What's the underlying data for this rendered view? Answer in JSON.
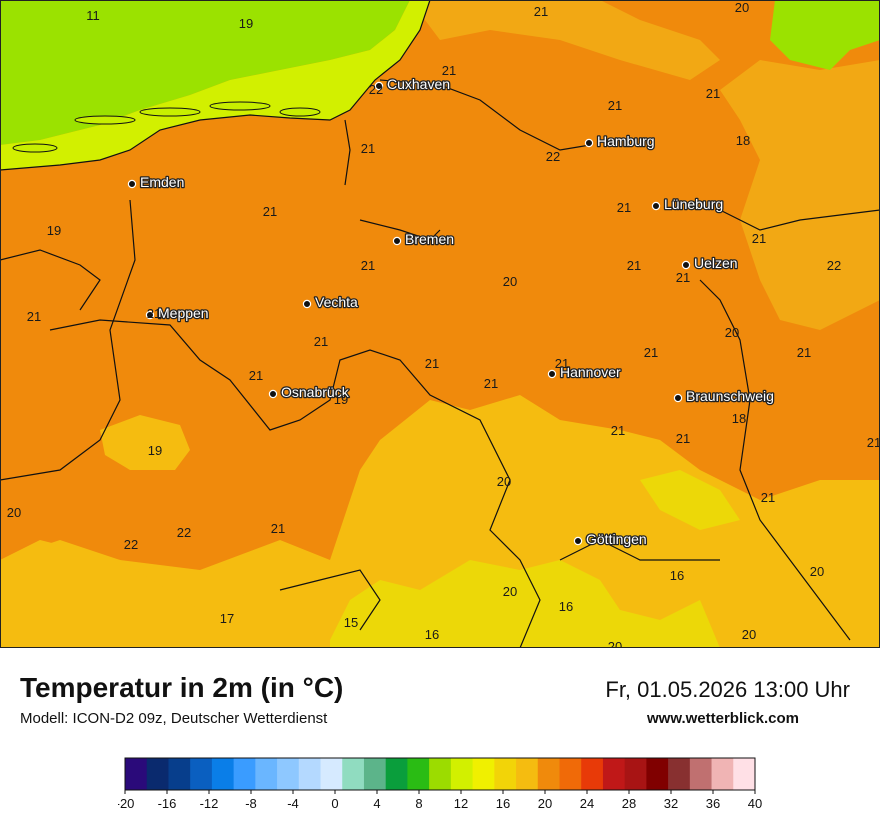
{
  "header": {
    "title": "Temperatur in 2m (in °C)",
    "model": "Modell: ICON-D2 09z, Deutscher Wetterdienst",
    "datetime": "Fr, 01.05.2026 13:00 Uhr",
    "website": "www.wetterblick.com"
  },
  "colors": {
    "sea": "#9be200",
    "coast_light": "#d2f000",
    "warm_orange": "#f08a0c",
    "mid_orange": "#f2a814",
    "yellow_orange": "#f5bc10",
    "yellow": "#ecd808",
    "border": "#111111"
  },
  "cities": [
    {
      "name": "Cuxhaven"
    },
    {
      "name": "Hamburg"
    },
    {
      "name": "Emden"
    },
    {
      "name": "Lüneburg"
    },
    {
      "name": "Bremen"
    },
    {
      "name": "Uelzen"
    },
    {
      "name": "Vechta"
    },
    {
      "name": "Meppen"
    },
    {
      "name": "Hannover"
    },
    {
      "name": "Osnabrück"
    },
    {
      "name": "Braunschweig"
    },
    {
      "name": "Göttingen"
    }
  ],
  "temperatures": [
    "11",
    "19",
    "21",
    "20",
    "22",
    "21",
    "21",
    "18",
    "21",
    "22",
    "21",
    "19",
    "21",
    "21",
    "21",
    "21",
    "21",
    "21",
    "20",
    "22",
    "21",
    "21",
    "21",
    "21",
    "20",
    "21",
    "21",
    "21",
    "21",
    "19",
    "21",
    "21",
    "21",
    "18",
    "19",
    "21",
    "20",
    "21",
    "20",
    "22",
    "21",
    "22",
    "20",
    "16",
    "20",
    "16",
    "17",
    "15",
    "16",
    "20",
    "20"
  ],
  "legend": {
    "colors": [
      "#2a0a7a",
      "#0a2a6e",
      "#073e8c",
      "#0a5fc0",
      "#0a7ee8",
      "#3a9cff",
      "#6ab6ff",
      "#8ec8ff",
      "#b4d9ff",
      "#d6eaff",
      "#90dcc0",
      "#5cb48a",
      "#0a9e3c",
      "#2abc14",
      "#9cdc00",
      "#d2f000",
      "#f0f000",
      "#f2d408",
      "#f5bc10",
      "#f08a0c",
      "#f06a08",
      "#e83a08",
      "#c01818",
      "#a81414",
      "#800000",
      "#883030",
      "#c07070",
      "#f0b4b4",
      "#ffe0e6"
    ],
    "ticks": [
      "-20",
      "-16",
      "-12",
      "-8",
      "-4",
      "0",
      "4",
      "8",
      "12",
      "16",
      "20",
      "24",
      "28",
      "32",
      "36",
      "40"
    ]
  }
}
